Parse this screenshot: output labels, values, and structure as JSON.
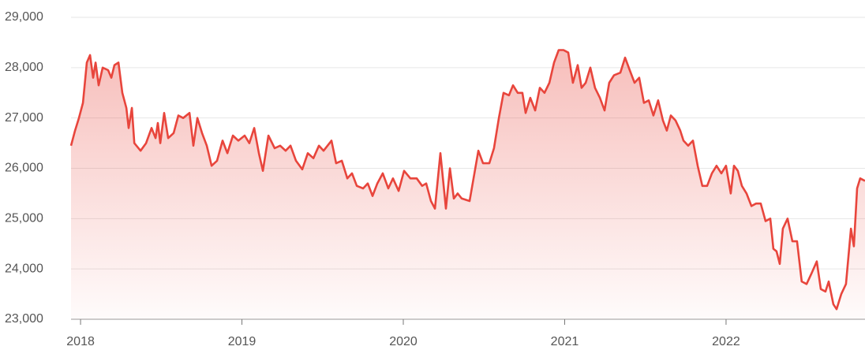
{
  "chart_data": {
    "type": "line",
    "color": "#e8453c",
    "area": true,
    "grid": true,
    "x": [
      2017.941,
      2017.966,
      2017.99,
      2018.015,
      2018.039,
      2018.059,
      2018.078,
      2018.093,
      2018.112,
      2018.137,
      2018.171,
      2018.191,
      2018.21,
      2018.235,
      2018.259,
      2018.284,
      2018.298,
      2018.318,
      2018.333,
      2018.372,
      2018.406,
      2018.44,
      2018.465,
      2018.479,
      2018.494,
      2018.518,
      2018.543,
      2018.577,
      2018.606,
      2018.636,
      2018.675,
      2018.699,
      2018.724,
      2018.753,
      2018.782,
      2018.812,
      2018.846,
      2018.88,
      2018.91,
      2018.944,
      2018.978,
      2019.017,
      2019.046,
      2019.076,
      2019.105,
      2019.13,
      2019.164,
      2019.203,
      2019.237,
      2019.271,
      2019.301,
      2019.335,
      2019.374,
      2019.408,
      2019.443,
      2019.477,
      2019.506,
      2019.555,
      2019.584,
      2019.619,
      2019.653,
      2019.682,
      2019.712,
      2019.751,
      2019.78,
      2019.809,
      2019.839,
      2019.873,
      2019.907,
      2019.936,
      2019.971,
      2020.005,
      2020.044,
      2020.083,
      2020.117,
      2020.142,
      2020.171,
      2020.196,
      2020.23,
      2020.264,
      2020.289,
      2020.313,
      2020.337,
      2020.362,
      2020.411,
      2020.435,
      2020.465,
      2020.494,
      2020.533,
      2020.562,
      2020.592,
      2020.621,
      2020.655,
      2020.68,
      2020.709,
      2020.738,
      2020.758,
      2020.787,
      2020.817,
      2020.846,
      2020.875,
      2020.905,
      2020.934,
      2020.963,
      2020.993,
      2021.022,
      2021.051,
      2021.081,
      2021.105,
      2021.13,
      2021.159,
      2021.188,
      2021.218,
      2021.247,
      2021.276,
      2021.306,
      2021.345,
      2021.374,
      2021.403,
      2021.433,
      2021.462,
      2021.491,
      2021.521,
      2021.55,
      2021.579,
      2021.609,
      2021.633,
      2021.658,
      2021.687,
      2021.716,
      2021.736,
      2021.765,
      2021.795,
      2021.824,
      2021.853,
      2021.883,
      2021.912,
      2021.941,
      2021.971,
      2022.0,
      2022.029,
      2022.049,
      2022.073,
      2022.098,
      2022.127,
      2022.157,
      2022.186,
      2022.215,
      2022.245,
      2022.274,
      2022.293,
      2022.313,
      2022.333,
      2022.352,
      2022.381,
      2022.411,
      2022.44,
      2022.469,
      2022.499,
      2022.528,
      2022.562,
      2022.587,
      2022.616,
      2022.636,
      2022.665,
      2022.685,
      2022.714,
      2022.743,
      2022.774,
      2022.792,
      2022.812,
      2022.831,
      2022.861
    ],
    "values": [
      26450,
      26750,
      27000,
      27300,
      28100,
      28250,
      27800,
      28100,
      27650,
      28000,
      27950,
      27800,
      28050,
      28100,
      27500,
      27200,
      26800,
      27200,
      26500,
      26350,
      26500,
      26800,
      26600,
      26900,
      26500,
      27100,
      26600,
      26700,
      27050,
      27000,
      27100,
      26450,
      27000,
      26700,
      26450,
      26050,
      26150,
      26550,
      26300,
      26650,
      26550,
      26650,
      26500,
      26800,
      26300,
      25950,
      26650,
      26400,
      26450,
      26350,
      26450,
      26150,
      25980,
      26300,
      26200,
      26450,
      26350,
      26550,
      26100,
      26150,
      25800,
      25900,
      25650,
      25600,
      25700,
      25450,
      25700,
      25900,
      25600,
      25800,
      25550,
      25950,
      25800,
      25800,
      25650,
      25700,
      25350,
      25200,
      26300,
      25200,
      26000,
      25400,
      25500,
      25400,
      25350,
      25800,
      26350,
      26100,
      26100,
      26400,
      27000,
      27500,
      27450,
      27650,
      27500,
      27500,
      27100,
      27400,
      27150,
      27600,
      27500,
      27700,
      28100,
      28350,
      28350,
      28300,
      27700,
      28050,
      27600,
      27700,
      28000,
      27600,
      27400,
      27150,
      27700,
      27850,
      27900,
      28200,
      27950,
      27700,
      27800,
      27300,
      27350,
      27050,
      27350,
      26950,
      26750,
      27050,
      26950,
      26750,
      26550,
      26450,
      26550,
      26050,
      25650,
      25650,
      25900,
      26050,
      25900,
      26050,
      25500,
      26050,
      25950,
      25650,
      25500,
      25250,
      25300,
      25300,
      24950,
      25000,
      24400,
      24350,
      24100,
      24800,
      25000,
      24550,
      24550,
      23750,
      23700,
      23900,
      24150,
      23600,
      23550,
      23750,
      23300,
      23200,
      23500,
      23700,
      24800,
      24450,
      25600,
      25800,
      25750
    ],
    "xlim": [
      2017.941,
      2022.861
    ],
    "xticks": [
      2018,
      2019,
      2020,
      2021,
      2022
    ],
    "ylim": [
      23000,
      29000
    ],
    "yticks": [
      {
        "value": 23000,
        "label": "23,000"
      },
      {
        "value": 24000,
        "label": "24,000"
      },
      {
        "value": 25000,
        "label": "25,000"
      },
      {
        "value": 26000,
        "label": "26,000"
      },
      {
        "value": 27000,
        "label": "27,000"
      },
      {
        "value": 28000,
        "label": "28,000"
      },
      {
        "value": 29000,
        "label": "29,000"
      }
    ]
  }
}
